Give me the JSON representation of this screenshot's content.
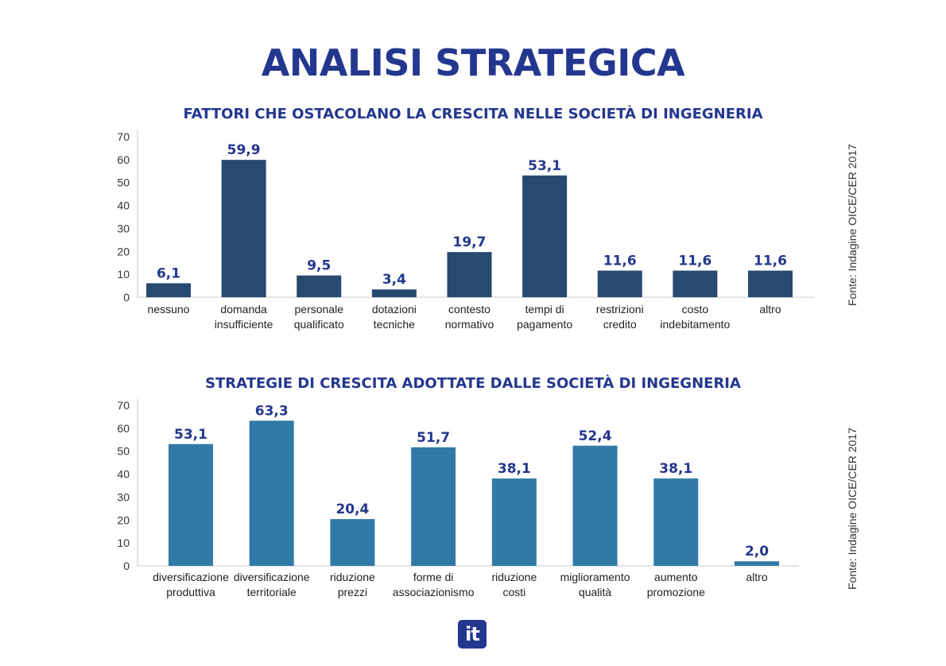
{
  "title": "ANALISI STRATEGICA",
  "logo_text": "it",
  "chart_data": [
    {
      "type": "bar",
      "title": "FATTORI CHE OSTACOLANO LA CRESCITA NELLE SOCIETÀ DI INGEGNERIA",
      "source": "Fonte: Indagine OICE/CER 2017",
      "categories": [
        [
          "nessuno"
        ],
        [
          "domanda",
          "insufficiente"
        ],
        [
          "personale",
          "qualificato"
        ],
        [
          "dotazioni",
          "tecniche"
        ],
        [
          "contesto",
          "normativo"
        ],
        [
          "tempi di",
          "pagamento"
        ],
        [
          "restrizioni",
          "credito"
        ],
        [
          "costo",
          "indebitamento"
        ],
        [
          "altro"
        ]
      ],
      "values": [
        6.1,
        59.9,
        9.5,
        3.4,
        19.7,
        53.1,
        11.6,
        11.6,
        11.6
      ],
      "value_labels": [
        "6,1",
        "59,9",
        "9,5",
        "3,4",
        "19,7",
        "53,1",
        "11,6",
        "11,6",
        "11,6"
      ],
      "yticks": [
        "0",
        "10",
        "20",
        "30",
        "40",
        "50",
        "60",
        "70"
      ],
      "ylim": [
        0,
        70
      ],
      "color": "#284a70",
      "grid": false,
      "legend": "none"
    },
    {
      "type": "bar",
      "title": "STRATEGIE DI CRESCITA ADOTTATE DALLE SOCIETÀ DI INGEGNERIA",
      "source": "Fonte: Indagine OICE/CER 2017",
      "categories": [
        [
          "diversificazione",
          "produttiva"
        ],
        [
          "diversificazione",
          "territoriale"
        ],
        [
          "riduzione",
          "prezzi"
        ],
        [
          "forme di",
          "associazionismo"
        ],
        [
          "riduzione",
          "costi"
        ],
        [
          "miglioramento",
          "qualità"
        ],
        [
          "aumento",
          "promozione"
        ],
        [
          "altro"
        ]
      ],
      "values": [
        53.1,
        63.3,
        20.4,
        51.7,
        38.1,
        52.4,
        38.1,
        2.0
      ],
      "value_labels": [
        "53,1",
        "63,3",
        "20,4",
        "51,7",
        "38,1",
        "52,4",
        "38,1",
        "2,0"
      ],
      "yticks": [
        "0",
        "10",
        "20",
        "30",
        "40",
        "50",
        "60",
        "70"
      ],
      "ylim": [
        0,
        70
      ],
      "color": "#3179a7",
      "grid": false,
      "legend": "none"
    }
  ]
}
